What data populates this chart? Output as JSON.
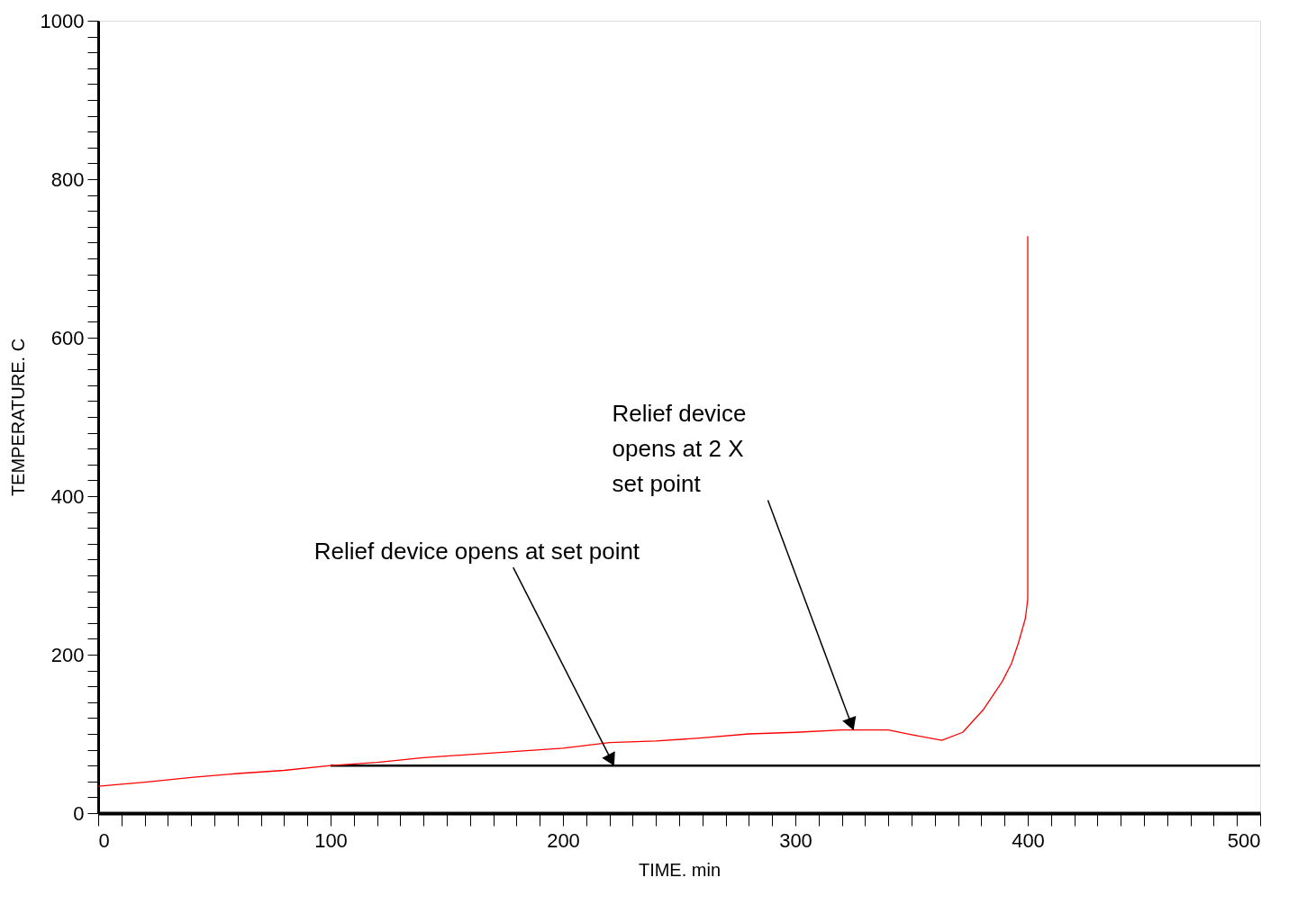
{
  "chart_data": {
    "type": "line",
    "xlabel": "TIME. min",
    "ylabel": "TEMPERATURE. C",
    "xlim": [
      0,
      500
    ],
    "ylim": [
      0,
      1000
    ],
    "xticks": [
      0,
      {
        "value": 10,
        "label": null
      },
      {
        "value": 20,
        "label": null
      },
      {
        "value": 30,
        "label": null
      },
      {
        "value": 40,
        "label": null
      },
      {
        "value": 50,
        "label": null
      },
      {
        "value": 60,
        "label": null
      },
      {
        "value": 70,
        "label": null
      },
      {
        "value": 80,
        "label": null
      },
      {
        "value": 90,
        "label": null
      },
      100,
      {
        "value": 110,
        "label": null
      },
      {
        "value": 120,
        "label": null
      },
      {
        "value": 130,
        "label": null
      },
      {
        "value": 140,
        "label": null
      },
      {
        "value": 150,
        "label": null
      },
      {
        "value": 160,
        "label": null
      },
      {
        "value": 170,
        "label": null
      },
      {
        "value": 180,
        "label": null
      },
      {
        "value": 190,
        "label": null
      },
      200,
      {
        "value": 210,
        "label": null
      },
      {
        "value": 220,
        "label": null
      },
      {
        "value": 230,
        "label": null
      },
      {
        "value": 240,
        "label": null
      },
      {
        "value": 250,
        "label": null
      },
      {
        "value": 260,
        "label": null
      },
      {
        "value": 270,
        "label": null
      },
      {
        "value": 280,
        "label": null
      },
      {
        "value": 290,
        "label": null
      },
      300,
      {
        "value": 310,
        "label": null
      },
      {
        "value": 320,
        "label": null
      },
      {
        "value": 330,
        "label": null
      },
      {
        "value": 340,
        "label": null
      },
      {
        "value": 350,
        "label": null
      },
      {
        "value": 360,
        "label": null
      },
      {
        "value": 370,
        "label": null
      },
      {
        "value": 380,
        "label": null
      },
      {
        "value": 390,
        "label": null
      },
      400,
      {
        "value": 410,
        "label": null
      },
      {
        "value": 420,
        "label": null
      },
      {
        "value": 430,
        "label": null
      },
      {
        "value": 440,
        "label": null
      },
      {
        "value": 450,
        "label": null
      },
      {
        "value": 460,
        "label": null
      },
      {
        "value": 470,
        "label": null
      },
      {
        "value": 480,
        "label": null
      },
      {
        "value": 490,
        "label": null
      },
      500
    ],
    "yticks": [
      0,
      {
        "value": 20,
        "label": null
      },
      {
        "value": 40,
        "label": null
      },
      {
        "value": 60,
        "label": null
      },
      {
        "value": 80,
        "label": null
      },
      {
        "value": 100,
        "label": null
      },
      {
        "value": 120,
        "label": null
      },
      {
        "value": 140,
        "label": null
      },
      {
        "value": 160,
        "label": null
      },
      {
        "value": 180,
        "label": null
      },
      200,
      {
        "value": 220,
        "label": null
      },
      {
        "value": 240,
        "label": null
      },
      {
        "value": 260,
        "label": null
      },
      {
        "value": 280,
        "label": null
      },
      {
        "value": 300,
        "label": null
      },
      {
        "value": 320,
        "label": null
      },
      {
        "value": 340,
        "label": null
      },
      {
        "value": 360,
        "label": null
      },
      {
        "value": 380,
        "label": null
      },
      400,
      {
        "value": 420,
        "label": null
      },
      {
        "value": 440,
        "label": null
      },
      {
        "value": 460,
        "label": null
      },
      {
        "value": 480,
        "label": null
      },
      {
        "value": 500,
        "label": null
      },
      {
        "value": 520,
        "label": null
      },
      {
        "value": 540,
        "label": null
      },
      {
        "value": 560,
        "label": null
      },
      {
        "value": 580,
        "label": null
      },
      600,
      {
        "value": 620,
        "label": null
      },
      {
        "value": 640,
        "label": null
      },
      {
        "value": 660,
        "label": null
      },
      {
        "value": 680,
        "label": null
      },
      {
        "value": 700,
        "label": null
      },
      {
        "value": 720,
        "label": null
      },
      {
        "value": 740,
        "label": null
      },
      {
        "value": 760,
        "label": null
      },
      {
        "value": 780,
        "label": null
      },
      800,
      {
        "value": 820,
        "label": null
      },
      {
        "value": 840,
        "label": null
      },
      {
        "value": 860,
        "label": null
      },
      {
        "value": 880,
        "label": null
      },
      {
        "value": 900,
        "label": null
      },
      {
        "value": 920,
        "label": null
      },
      {
        "value": 940,
        "label": null
      },
      {
        "value": 960,
        "label": null
      },
      {
        "value": 980,
        "label": null
      },
      1000
    ],
    "grid": false,
    "line_style": "solid",
    "marker": "none",
    "series": [
      {
        "color": "#000000",
        "x": [
          100,
          500
        ],
        "values": [
          60,
          60
        ]
      },
      {
        "color": "#ff0000",
        "x": [
          0,
          20,
          40,
          60,
          80,
          100,
          120,
          140,
          160,
          180,
          200,
          220,
          240,
          260,
          280,
          300,
          320,
          340,
          350,
          363,
          372,
          381,
          389,
          393,
          396,
          399,
          400,
          400
        ],
        "values": [
          34,
          39,
          45,
          50,
          54,
          60,
          64,
          70,
          74,
          78,
          82,
          89,
          91,
          95,
          100,
          102,
          105,
          105,
          99,
          92,
          102,
          131,
          166,
          189,
          215,
          246,
          270,
          728
        ]
      }
    ],
    "annotations": [
      {
        "text": "Relief device opens at set point",
        "x": 222,
        "y": 60
      },
      {
        "text": "Relief device\nopens at 2 X\nset point",
        "x": 325,
        "y": 105
      }
    ]
  }
}
